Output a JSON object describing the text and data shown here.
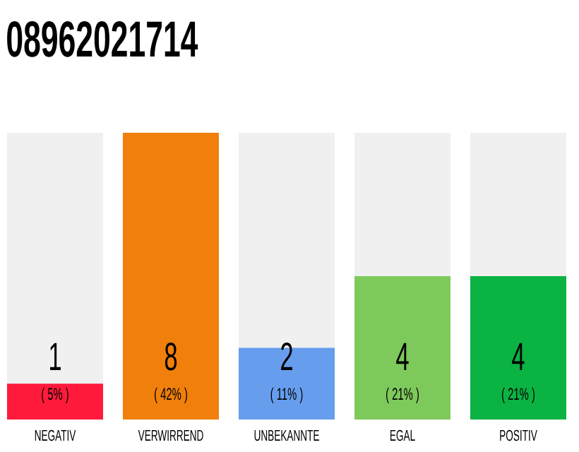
{
  "chart_data": {
    "type": "bar",
    "title": "08962021714",
    "categories": [
      "NEGATIV",
      "VERWIRREND",
      "UNBEKANNTE",
      "EGAL",
      "POSITIV"
    ],
    "values": [
      1,
      8,
      2,
      4,
      4
    ],
    "colors": [
      "#ff1a3c",
      "#f07f0c",
      "#669ded",
      "#7ec95c",
      "#0bb343"
    ],
    "data_labels": true,
    "annotations": [
      "( 5% )",
      "( 42% )",
      "( 11% )",
      "( 21% )",
      "( 21% )"
    ]
  }
}
